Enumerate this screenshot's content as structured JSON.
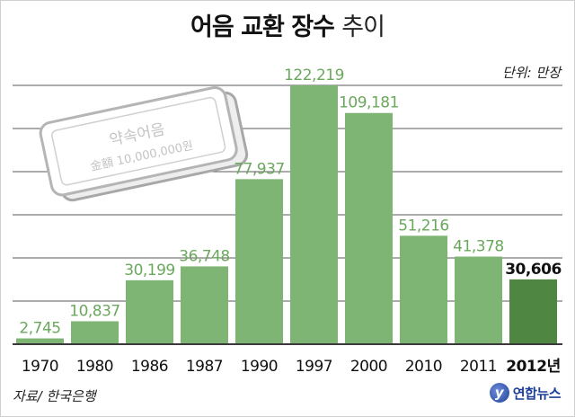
{
  "title": {
    "main": "어음 교환 장수",
    "sub": "추이"
  },
  "unit_label": "단위: 만장",
  "source": "자료/ 한국은행",
  "logo": {
    "text": "연합뉴스",
    "icon": "yonhap-logo-icon"
  },
  "illustration": {
    "line1": "약속어음",
    "line2": "金額 10,000,000원",
    "icon": "promissory-note-icon"
  },
  "colors": {
    "bar": "#7fb574",
    "bar_highlight": "#4f8642",
    "value_label": "#6aa85c",
    "value_label_highlight": "#111111",
    "grid": "#5a5a5a"
  },
  "chart_data": {
    "type": "bar",
    "categories": [
      "1970",
      "1980",
      "1986",
      "1987",
      "1990",
      "1997",
      "2000",
      "2010",
      "2011",
      "2012년"
    ],
    "values": [
      2745,
      10837,
      30199,
      36748,
      77937,
      122219,
      109181,
      51216,
      41378,
      30606
    ],
    "value_labels": [
      "2,745",
      "10,837",
      "30,199",
      "36,748",
      "77,937",
      "122,219",
      "109,181",
      "51,216",
      "41,378",
      "30,606"
    ],
    "highlight_index": 9,
    "title": "어음 교환 장수 추이",
    "unit": "단위: 만장",
    "ylim": [
      0,
      130000
    ],
    "grid": true
  }
}
